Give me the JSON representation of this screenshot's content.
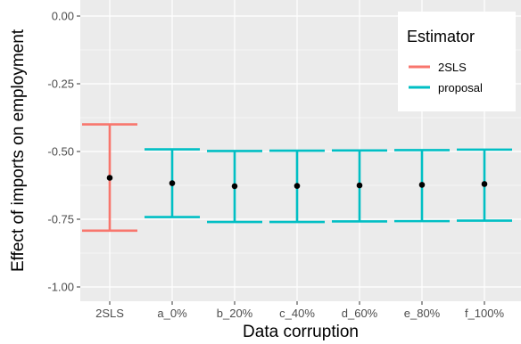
{
  "chart_data": {
    "type": "errorbar",
    "xlabel": "Data corruption",
    "ylabel": "Effect of imports on employment",
    "categories": [
      "2SLS",
      "a_0%",
      "b_20%",
      "c_40%",
      "d_60%",
      "e_80%",
      "f_100%"
    ],
    "points": [
      {
        "category": "2SLS",
        "estimator": "2SLS",
        "estimate": -0.597,
        "lower": -0.792,
        "upper": -0.4
      },
      {
        "category": "a_0%",
        "estimator": "proposal",
        "estimate": -0.617,
        "lower": -0.742,
        "upper": -0.492
      },
      {
        "category": "b_20%",
        "estimator": "proposal",
        "estimate": -0.628,
        "lower": -0.76,
        "upper": -0.498
      },
      {
        "category": "c_40%",
        "estimator": "proposal",
        "estimate": -0.627,
        "lower": -0.76,
        "upper": -0.497
      },
      {
        "category": "d_60%",
        "estimator": "proposal",
        "estimate": -0.625,
        "lower": -0.758,
        "upper": -0.496
      },
      {
        "category": "e_80%",
        "estimator": "proposal",
        "estimate": -0.623,
        "lower": -0.757,
        "upper": -0.495
      },
      {
        "category": "f_100%",
        "estimator": "proposal",
        "estimate": -0.62,
        "lower": -0.755,
        "upper": -0.493
      }
    ],
    "ylim": [
      -1.0,
      0.0
    ],
    "yticks": [
      0.0,
      -0.25,
      -0.5,
      -0.75,
      -1.0
    ],
    "ytick_labels": [
      "0.00",
      "-0.25",
      "-0.50",
      "-0.75",
      "-1.00"
    ],
    "legend": {
      "title": "Estimator",
      "position": "top-right",
      "entries": [
        {
          "label": "2SLS",
          "color": "#F8766D"
        },
        {
          "label": "proposal",
          "color": "#00BFC4"
        }
      ]
    },
    "colors": {
      "2SLS": "#F8766D",
      "proposal": "#00BFC4",
      "panel": "#EBEBEB",
      "grid": "#FFFFFF",
      "point": "#000000"
    },
    "grid": true
  }
}
